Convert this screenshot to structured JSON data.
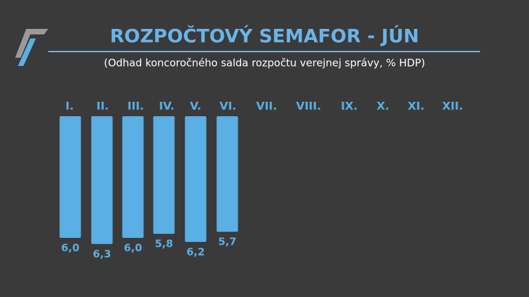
{
  "chart_data": {
    "type": "bar",
    "title": "ROZPOČTOVÝ SEMAFOR - JÚN",
    "subtitle": "(Odhad koncoročného salda rozpočtu verejnej správy, % HDP)",
    "categories": [
      "I.",
      "II.",
      "III.",
      "IV.",
      "V.",
      "VI.",
      "VII.",
      "VIII.",
      "IX.",
      "X.",
      "XI.",
      "XII."
    ],
    "values": [
      6.0,
      6.3,
      6.0,
      5.8,
      6.2,
      5.7,
      null,
      null,
      null,
      null,
      null,
      null
    ],
    "value_labels": [
      "6,0",
      "6,3",
      "6,0",
      "5,8",
      "6,2",
      "5,7",
      null,
      null,
      null,
      null,
      null,
      null
    ],
    "color": "#5aafe4"
  }
}
